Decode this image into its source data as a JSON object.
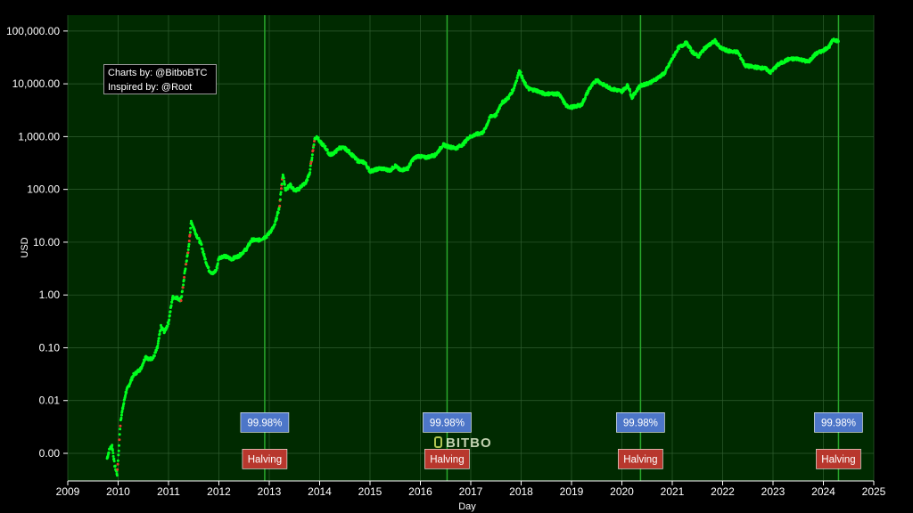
{
  "credits": {
    "line1": "Charts by: @BitboBTC",
    "line2": "Inspired by: @Root"
  },
  "watermark": "BITBO",
  "chart_data": {
    "type": "scatter",
    "title": "",
    "xlabel": "Day",
    "ylabel": "USD",
    "yscale": "log",
    "xlim": [
      2009,
      2025
    ],
    "ylim": [
      0.0003,
      200000
    ],
    "x_ticks": [
      "2009",
      "2010",
      "2011",
      "2012",
      "2013",
      "2014",
      "2015",
      "2016",
      "2017",
      "2018",
      "2019",
      "2020",
      "2021",
      "2022",
      "2023",
      "2024",
      "2025"
    ],
    "y_ticks": [
      {
        "value": 0.001,
        "label": "0.00"
      },
      {
        "value": 0.01,
        "label": "0.01"
      },
      {
        "value": 0.1,
        "label": "0.10"
      },
      {
        "value": 1,
        "label": "1.00"
      },
      {
        "value": 10,
        "label": "10.00"
      },
      {
        "value": 100,
        "label": "100.00"
      },
      {
        "value": 1000,
        "label": "1,000.00"
      },
      {
        "value": 10000,
        "label": "10,000.00"
      },
      {
        "value": 100000,
        "label": "100,000.00"
      }
    ],
    "grid": true,
    "halvings": [
      {
        "date": 2012.91,
        "percent_label": "99.98%",
        "event_label": "Halving"
      },
      {
        "date": 2016.53,
        "percent_label": "99.98%",
        "event_label": "Halving"
      },
      {
        "date": 2020.37,
        "percent_label": "99.98%",
        "event_label": "Halving"
      },
      {
        "date": 2024.3,
        "percent_label": "99.98%",
        "event_label": "Halving"
      }
    ],
    "price_series": [
      [
        2009.78,
        0.0008
      ],
      [
        2009.83,
        0.0012
      ],
      [
        2009.88,
        0.0014
      ],
      [
        2009.93,
        0.0006
      ],
      [
        2009.98,
        0.0004
      ],
      [
        2010.05,
        0.0043
      ],
      [
        2010.15,
        0.014
      ],
      [
        2010.3,
        0.03
      ],
      [
        2010.45,
        0.04
      ],
      [
        2010.55,
        0.07
      ],
      [
        2010.6,
        0.06
      ],
      [
        2010.7,
        0.065
      ],
      [
        2010.78,
        0.1
      ],
      [
        2010.85,
        0.25
      ],
      [
        2010.92,
        0.2
      ],
      [
        2011.0,
        0.3
      ],
      [
        2011.08,
        0.9
      ],
      [
        2011.15,
        0.9
      ],
      [
        2011.25,
        0.8
      ],
      [
        2011.33,
        3.0
      ],
      [
        2011.4,
        8.0
      ],
      [
        2011.45,
        25.0
      ],
      [
        2011.55,
        14.0
      ],
      [
        2011.65,
        9.0
      ],
      [
        2011.72,
        5.0
      ],
      [
        2011.8,
        3.0
      ],
      [
        2011.88,
        2.5
      ],
      [
        2011.95,
        3.0
      ],
      [
        2012.0,
        5.0
      ],
      [
        2012.1,
        5.5
      ],
      [
        2012.25,
        4.8
      ],
      [
        2012.4,
        5.5
      ],
      [
        2012.55,
        7.5
      ],
      [
        2012.65,
        11.0
      ],
      [
        2012.8,
        11.0
      ],
      [
        2012.95,
        13.0
      ],
      [
        2013.1,
        20.0
      ],
      [
        2013.2,
        45.0
      ],
      [
        2013.27,
        200.0
      ],
      [
        2013.32,
        100.0
      ],
      [
        2013.42,
        120.0
      ],
      [
        2013.5,
        95.0
      ],
      [
        2013.58,
        100.0
      ],
      [
        2013.65,
        120.0
      ],
      [
        2013.72,
        130.0
      ],
      [
        2013.8,
        200.0
      ],
      [
        2013.9,
        900.0
      ],
      [
        2013.95,
        1000.0
      ],
      [
        2014.0,
        800.0
      ],
      [
        2014.1,
        650.0
      ],
      [
        2014.2,
        450.0
      ],
      [
        2014.3,
        500.0
      ],
      [
        2014.4,
        620.0
      ],
      [
        2014.5,
        600.0
      ],
      [
        2014.6,
        500.0
      ],
      [
        2014.75,
        350.0
      ],
      [
        2014.9,
        320.0
      ],
      [
        2015.0,
        220.0
      ],
      [
        2015.2,
        250.0
      ],
      [
        2015.4,
        230.0
      ],
      [
        2015.5,
        280.0
      ],
      [
        2015.6,
        230.0
      ],
      [
        2015.75,
        250.0
      ],
      [
        2015.85,
        370.0
      ],
      [
        2015.95,
        430.0
      ],
      [
        2016.1,
        400.0
      ],
      [
        2016.3,
        450.0
      ],
      [
        2016.45,
        700.0
      ],
      [
        2016.55,
        650.0
      ],
      [
        2016.7,
        600.0
      ],
      [
        2016.85,
        720.0
      ],
      [
        2016.95,
        950.0
      ],
      [
        2017.1,
        1100.0
      ],
      [
        2017.25,
        1200.0
      ],
      [
        2017.4,
        2500.0
      ],
      [
        2017.5,
        2500.0
      ],
      [
        2017.6,
        4200.0
      ],
      [
        2017.75,
        5500.0
      ],
      [
        2017.85,
        8000.0
      ],
      [
        2017.97,
        18000.0
      ],
      [
        2018.05,
        11000.0
      ],
      [
        2018.15,
        8000.0
      ],
      [
        2018.3,
        7500.0
      ],
      [
        2018.45,
        6500.0
      ],
      [
        2018.6,
        6500.0
      ],
      [
        2018.75,
        6400.0
      ],
      [
        2018.9,
        3800.0
      ],
      [
        2019.0,
        3600.0
      ],
      [
        2019.2,
        4000.0
      ],
      [
        2019.35,
        8000.0
      ],
      [
        2019.5,
        12000.0
      ],
      [
        2019.6,
        10000.0
      ],
      [
        2019.8,
        8000.0
      ],
      [
        2020.0,
        7200.0
      ],
      [
        2020.12,
        9500.0
      ],
      [
        2020.2,
        5500.0
      ],
      [
        2020.35,
        9000.0
      ],
      [
        2020.6,
        11000.0
      ],
      [
        2020.85,
        16000.0
      ],
      [
        2021.0,
        30000.0
      ],
      [
        2021.12,
        48000.0
      ],
      [
        2021.28,
        60000.0
      ],
      [
        2021.4,
        40000.0
      ],
      [
        2021.52,
        33000.0
      ],
      [
        2021.65,
        48000.0
      ],
      [
        2021.85,
        65000.0
      ],
      [
        2021.95,
        48000.0
      ],
      [
        2022.1,
        42000.0
      ],
      [
        2022.3,
        40000.0
      ],
      [
        2022.45,
        22000.0
      ],
      [
        2022.6,
        21000.0
      ],
      [
        2022.85,
        19500.0
      ],
      [
        2022.95,
        16500.0
      ],
      [
        2023.1,
        23000.0
      ],
      [
        2023.3,
        29000.0
      ],
      [
        2023.5,
        30000.0
      ],
      [
        2023.7,
        26000.0
      ],
      [
        2023.85,
        37000.0
      ],
      [
        2024.0,
        43000.0
      ],
      [
        2024.12,
        52000.0
      ],
      [
        2024.2,
        70000.0
      ],
      [
        2024.3,
        64000.0
      ]
    ],
    "colors": {
      "background": "#000000",
      "plot_background": "#002a00",
      "points": "#00ff1e",
      "highlight_points": "#e53a2c",
      "halving_line": "#29a82c",
      "percent_label_bg": "#4d76c8",
      "halving_label_bg": "#b8372d"
    }
  }
}
